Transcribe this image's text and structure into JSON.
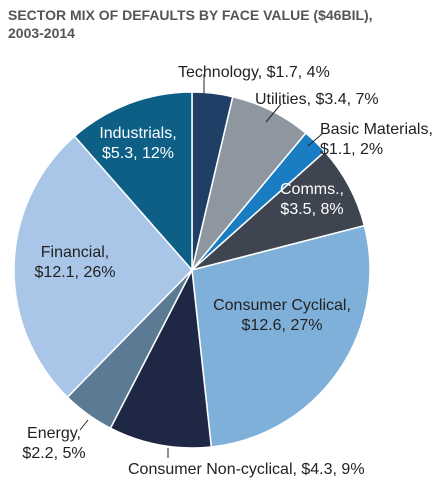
{
  "chart_data": {
    "type": "pie",
    "title": [
      "SECTOR MIX OF DEFAULTS BY FACE VALUE ($46BIL),",
      "2003-2014"
    ],
    "categories": [
      "Technology",
      "Utilities",
      "Basic Materials",
      "Comms.",
      "Consumer Cyclical",
      "Consumer Non-cyclical",
      "Energy",
      "Financial",
      "Industrials"
    ],
    "values": [
      1.7,
      3.4,
      1.1,
      3.5,
      12.6,
      4.3,
      2.2,
      12.1,
      5.3
    ],
    "value_labels": [
      [
        "Technology, $1.7, 4%"
      ],
      [
        "Utilities, $3.4, 7%"
      ],
      [
        "Basic Materials,",
        "$1.1, 2%"
      ],
      [
        "Comms.,",
        "$3.5, 8%"
      ],
      [
        "Consumer Cyclical,",
        "$12.6, 27%"
      ],
      [
        "Consumer Non-cyclical, $4.3, 9%"
      ],
      [
        "Energy,",
        "$2.2, 5%"
      ],
      [
        "Financial,",
        "$12.1, 26%"
      ],
      [
        "Industrials,",
        "$5.3, 12%"
      ]
    ],
    "colors": [
      "#1f3f66",
      "#8e979f",
      "#1a7dc4",
      "#3f4550",
      "#7fb0d9",
      "#1e2744",
      "#5b7b94",
      "#a9c6e8",
      "#0d5f86"
    ]
  }
}
